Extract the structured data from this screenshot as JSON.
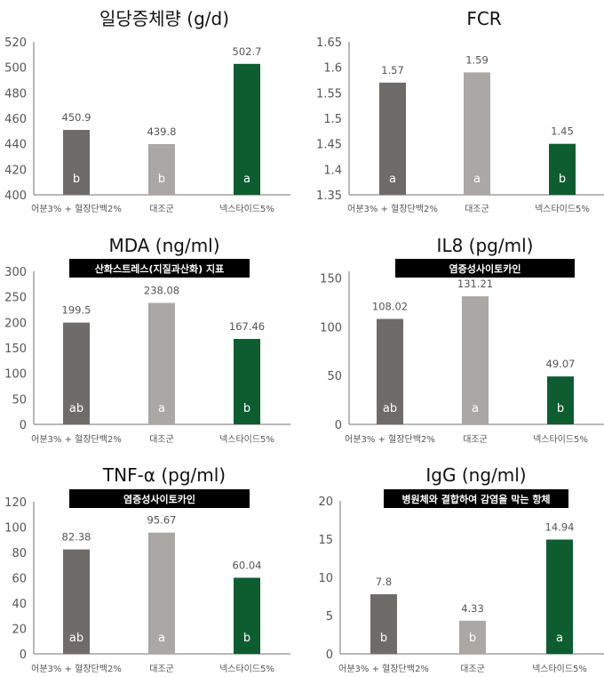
{
  "colors": {
    "bar1": "#6f6b69",
    "bar2": "#aaa7a5",
    "bar3": "#0d5d31",
    "axis": "#a0a0a0",
    "banner": "#000000"
  },
  "chart_data": [
    {
      "type": "bar",
      "title": "일당증체량 (g/d)",
      "subtitle": "",
      "categories": [
        "어분3% + 혈장단백2%",
        "대조군",
        "넥스타이드5%"
      ],
      "values": [
        450.9,
        439.8,
        502.7
      ],
      "value_labels": [
        "450.9",
        "439.8",
        "502.7"
      ],
      "group_letters": [
        "b",
        "b",
        "a"
      ],
      "ylim": [
        400,
        520
      ],
      "yticks": [
        400,
        420,
        440,
        460,
        480,
        500,
        520
      ],
      "ytick_labels": [
        "400",
        "420",
        "440",
        "460",
        "480",
        "500",
        "520"
      ],
      "xlabel": "",
      "ylabel": "",
      "grid": false
    },
    {
      "type": "bar",
      "title": "FCR",
      "subtitle": "",
      "categories": [
        "어분3% + 혈장단백2%",
        "대조군",
        "넥스타이드5%"
      ],
      "values": [
        1.57,
        1.59,
        1.45
      ],
      "value_labels": [
        "1.57",
        "1.59",
        "1.45"
      ],
      "group_letters": [
        "a",
        "a",
        "b"
      ],
      "ylim": [
        1.35,
        1.65
      ],
      "yticks": [
        1.35,
        1.4,
        1.45,
        1.5,
        1.55,
        1.6,
        1.65
      ],
      "ytick_labels": [
        "1.35",
        "1.4",
        "1.45",
        "1.5",
        "1.55",
        "1.6",
        "1.65"
      ],
      "xlabel": "",
      "ylabel": "",
      "grid": false
    },
    {
      "type": "bar",
      "title": "MDA (ng/ml)",
      "subtitle": "산화스트레스(지질과산화) 지표",
      "categories": [
        "어분3% + 혈장단백2%",
        "대조군",
        "넥스타이드5%"
      ],
      "values": [
        199.5,
        238.08,
        167.46
      ],
      "value_labels": [
        "199.5",
        "238.08",
        "167.46"
      ],
      "group_letters": [
        "ab",
        "a",
        "b"
      ],
      "ylim": [
        0,
        300
      ],
      "yticks": [
        0,
        50,
        100,
        150,
        200,
        250,
        300
      ],
      "ytick_labels": [
        "0",
        "50",
        "100",
        "150",
        "200",
        "250",
        "300"
      ],
      "xlabel": "",
      "ylabel": "",
      "grid": false
    },
    {
      "type": "bar",
      "title": "IL8 (pg/ml)",
      "subtitle": "염증성사이토카인",
      "categories": [
        "어분3% + 혈장단백2%",
        "대조군",
        "넥스타이드5%"
      ],
      "values": [
        108.02,
        131.21,
        49.07
      ],
      "value_labels": [
        "108.02",
        "131.21",
        "49.07"
      ],
      "group_letters": [
        "ab",
        "a",
        "b"
      ],
      "ylim": [
        0,
        175
      ],
      "yticks": [
        0,
        50,
        100,
        150
      ],
      "ytick_labels": [
        "0",
        "50",
        "100",
        "150"
      ],
      "xlabel": "",
      "ylabel": "",
      "grid": false
    },
    {
      "type": "bar",
      "title": "TNF-α (pg/ml)",
      "subtitle": "염증성사이토카인",
      "categories": [
        "어분3% + 혈장단백2%",
        "대조군",
        "넥스타이드5%"
      ],
      "values": [
        82.38,
        95.67,
        60.04
      ],
      "value_labels": [
        "82.38",
        "95.67",
        "60.04"
      ],
      "group_letters": [
        "ab",
        "a",
        "b"
      ],
      "ylim": [
        0,
        120
      ],
      "yticks": [
        0,
        20,
        40,
        60,
        80,
        100,
        120
      ],
      "ytick_labels": [
        "0",
        "20",
        "40",
        "60",
        "80",
        "100",
        "120"
      ],
      "xlabel": "",
      "ylabel": "",
      "grid": false
    },
    {
      "type": "bar",
      "title": "IgG (ng/ml)",
      "subtitle": "병원체와 결합하여 감염을 막는 항체",
      "categories": [
        "어분3% + 혈장단백2%",
        "대조군",
        "넥스타이드5%"
      ],
      "values": [
        7.8,
        4.33,
        14.94
      ],
      "value_labels": [
        "7.8",
        "4.33",
        "14.94"
      ],
      "group_letters": [
        "b",
        "b",
        "a"
      ],
      "ylim": [
        0,
        20
      ],
      "yticks": [
        0,
        5,
        10,
        15,
        20
      ],
      "ytick_labels": [
        "0",
        "5",
        "10",
        "15",
        "20"
      ],
      "xlabel": "",
      "ylabel": "",
      "grid": false
    }
  ]
}
